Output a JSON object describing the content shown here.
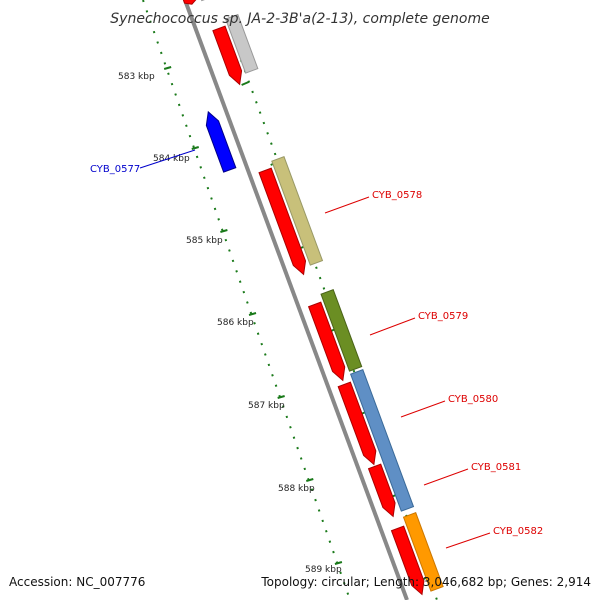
{
  "title": "Synechococcus sp. JA-2-3B'a(2-13), complete genome",
  "footer": {
    "accession": "Accession: NC_007776",
    "summary": "Topology: circular; Length: 3,046,682 bp; Genes: 2,914"
  },
  "colors": {
    "backbone": "#888888",
    "tick": "#1a7a1a",
    "forward_label": "#dd0000",
    "reverse_label": "#0000cc"
  },
  "ticks": [
    {
      "label": "583 kbp"
    },
    {
      "label": "584 kbp"
    },
    {
      "label": "585 kbp"
    },
    {
      "label": "586 kbp"
    },
    {
      "label": "587 kbp"
    },
    {
      "label": "588 kbp"
    },
    {
      "label": "589 kbp"
    }
  ],
  "labels": [
    {
      "text": "CYB_0577",
      "strand": "reverse"
    },
    {
      "text": "CYB_0578",
      "strand": "forward"
    },
    {
      "text": "CYB_0579",
      "strand": "forward"
    },
    {
      "text": "CYB_0580",
      "strand": "forward"
    },
    {
      "text": "CYB_0581",
      "strand": "forward"
    },
    {
      "text": "CYB_0582",
      "strand": "forward"
    }
  ]
}
